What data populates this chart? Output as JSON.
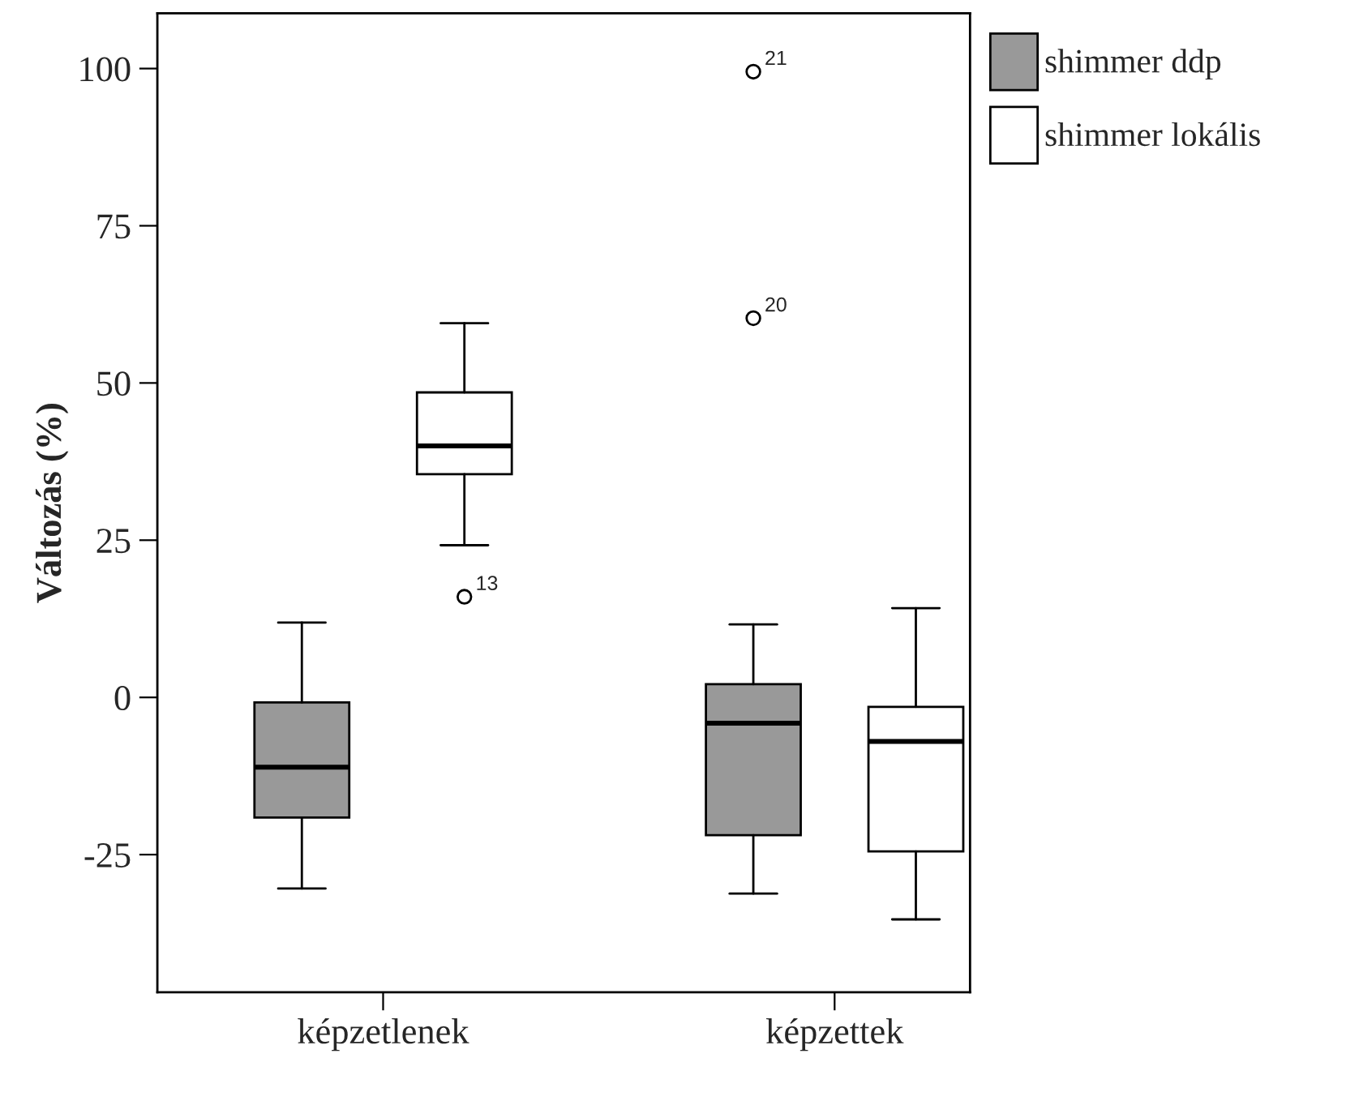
{
  "chart_data": {
    "type": "box",
    "ylabel": "Változás (%)",
    "categories": [
      "képzetlenek",
      "képzettek"
    ],
    "series": [
      {
        "name": "shimmer ddp",
        "color": "#999999",
        "boxes": [
          {
            "low": -30.4,
            "q1": -19.1,
            "median": -11.1,
            "q3": -0.8,
            "high": 11.9
          },
          {
            "low": -31.2,
            "q1": -21.9,
            "median": -4.1,
            "q3": 2.1,
            "high": 11.6,
            "outliers": [
              99.5,
              60.3
            ]
          }
        ]
      },
      {
        "name": "shimmer lokális",
        "color": "#ffffff",
        "boxes": [
          {
            "low": 24.2,
            "q1": 35.5,
            "median": 40.0,
            "q3": 48.5,
            "high": 59.5,
            "outliers": [
              16.0
            ]
          },
          {
            "low": -35.3,
            "q1": -24.5,
            "median": -7.0,
            "q3": -1.5,
            "high": 14.2
          }
        ]
      }
    ],
    "ylim": [
      -46.9,
      108.8
    ],
    "yticks": [
      {
        "value": -25,
        "label": "-25"
      },
      0,
      25,
      50,
      75,
      100
    ],
    "annotations": [
      "21",
      "20",
      "13"
    ],
    "legend": "top right",
    "grid": false
  }
}
